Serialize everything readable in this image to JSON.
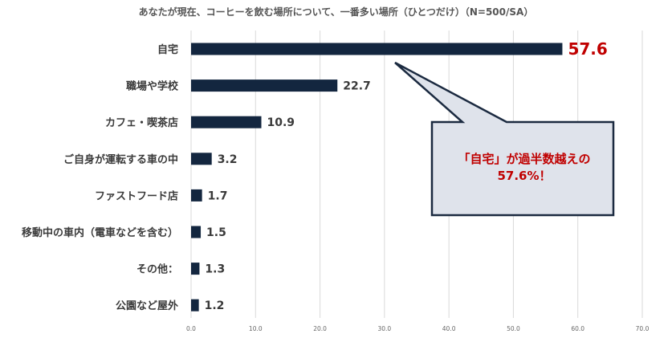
{
  "chart_data": {
    "type": "bar",
    "orientation": "horizontal",
    "title": "あなたが現在、コーヒーを飲む場所について、一番多い場所（ひとつだけ）（N=500/SA）",
    "categories": [
      "自宅",
      "職場や学校",
      "カフェ・喫茶店",
      "ご自身が運転する車の中",
      "ファストフード店",
      "移動中の車内（電車などを含む）",
      "その他：",
      "公園など屋外"
    ],
    "values": [
      57.6,
      22.7,
      10.9,
      3.2,
      1.7,
      1.5,
      1.3,
      1.2
    ],
    "value_labels": [
      "57.6",
      "22.7",
      "10.9",
      "3.2",
      "1.7",
      "1.5",
      "1.3",
      "1.2"
    ],
    "highlight_index": 0,
    "xlim": [
      0,
      70
    ],
    "x_ticks": [
      0,
      10,
      20,
      30,
      40,
      50,
      60,
      70
    ],
    "x_tick_labels": [
      "0.0",
      "10.0",
      "20.0",
      "30.0",
      "40.0",
      "50.0",
      "60.0",
      "70.0"
    ],
    "grid": true,
    "legend": "none",
    "xlabel": "",
    "ylabel": ""
  },
  "callout": {
    "line1": "「自宅」が過半数越えの",
    "line2": "57.6%！"
  },
  "colors": {
    "bar": "#13263f",
    "highlight_text": "#c00000",
    "callout_fill": "#dfe3eb",
    "callout_border": "#1b2a40",
    "grid": "#d9d9d9",
    "label_text": "#3a3a3a"
  }
}
